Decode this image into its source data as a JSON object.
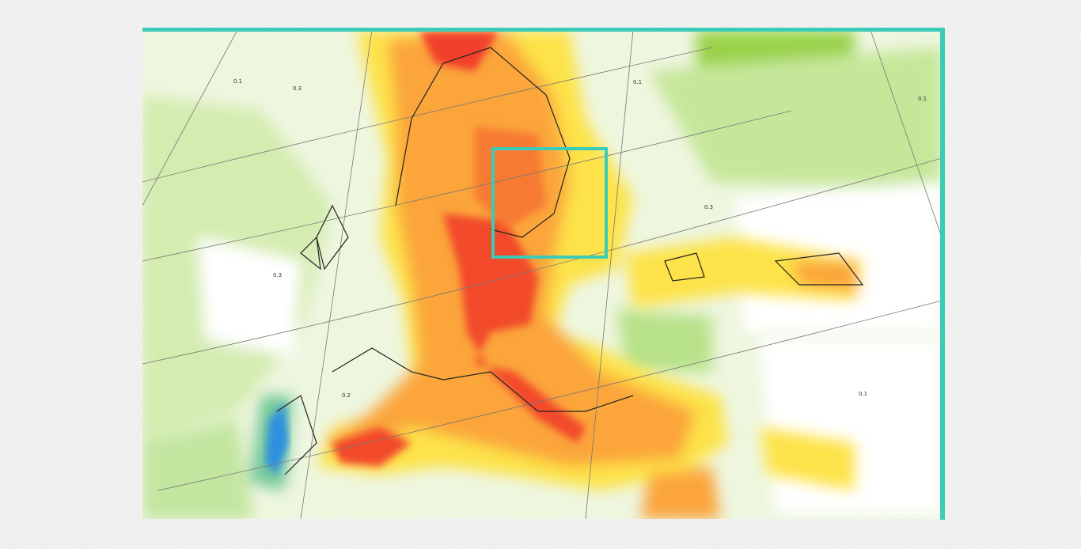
{
  "map": {
    "contour_labels": [
      "0.1",
      "0.3",
      "0.1",
      "0.3",
      "0.2",
      "0.1",
      "0.3",
      "0.1"
    ]
  }
}
